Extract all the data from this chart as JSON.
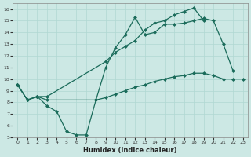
{
  "xlabel": "Humidex (Indice chaleur)",
  "bg_color": "#cce8e4",
  "grid_color": "#b0d8d2",
  "line_color": "#1a6b5a",
  "xlim": [
    -0.5,
    23.5
  ],
  "ylim": [
    5,
    16.5
  ],
  "xticks": [
    0,
    1,
    2,
    3,
    4,
    5,
    6,
    7,
    8,
    9,
    10,
    11,
    12,
    13,
    14,
    15,
    16,
    17,
    18,
    19,
    20,
    21,
    22,
    23
  ],
  "yticks": [
    5,
    6,
    7,
    8,
    9,
    10,
    11,
    12,
    13,
    14,
    15,
    16
  ],
  "line1_x": [
    0,
    1,
    2,
    3,
    4,
    5,
    6,
    7,
    8,
    9,
    10,
    11,
    12,
    13,
    14,
    15,
    16,
    17,
    18,
    19,
    20,
    21,
    22
  ],
  "line1_y": [
    9.5,
    8.2,
    8.5,
    7.7,
    7.2,
    5.5,
    5.2,
    5.2,
    8.2,
    11.0,
    12.7,
    13.8,
    15.3,
    13.8,
    14.0,
    14.7,
    14.7,
    14.8,
    15.0,
    15.2,
    15.0,
    13.0,
    10.7
  ],
  "line2_x": [
    0,
    1,
    2,
    3,
    9,
    10,
    11,
    12,
    13,
    14,
    15,
    16,
    17,
    18,
    19
  ],
  "line2_y": [
    9.5,
    8.2,
    8.5,
    8.5,
    11.5,
    12.3,
    12.8,
    13.3,
    14.2,
    14.8,
    15.0,
    15.5,
    15.8,
    16.1,
    15.0
  ],
  "line3_x": [
    0,
    1,
    2,
    3,
    8,
    9,
    10,
    11,
    12,
    13,
    14,
    15,
    16,
    17,
    18,
    19,
    20,
    21,
    22,
    23
  ],
  "line3_y": [
    9.5,
    8.2,
    8.5,
    8.2,
    8.2,
    8.4,
    8.7,
    9.0,
    9.3,
    9.5,
    9.8,
    10.0,
    10.2,
    10.3,
    10.5,
    10.5,
    10.3,
    10.0,
    10.0,
    10.0
  ]
}
